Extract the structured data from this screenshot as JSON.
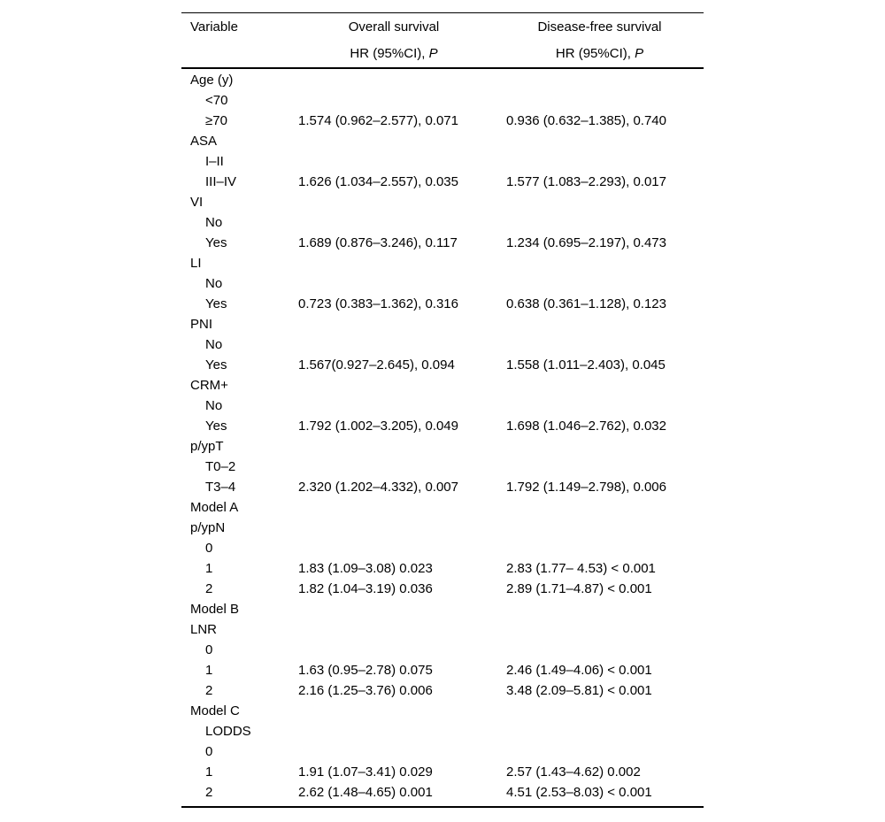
{
  "colors": {
    "background": "#ffffff",
    "text": "#000000",
    "rule": "#000000"
  },
  "table": {
    "columns": {
      "variable": "Variable",
      "os": "Overall survival",
      "dfs": "Disease-free survival",
      "subheader_hr": "HR (95%CI), ",
      "subheader_p": "P"
    },
    "rows": [
      {
        "label": "Age (y)",
        "indent": false,
        "os": "",
        "dfs": ""
      },
      {
        "label": "<70",
        "indent": true,
        "os": "",
        "dfs": ""
      },
      {
        "label": "≥70",
        "indent": true,
        "os": "1.574 (0.962–2.577), 0.071",
        "dfs": "0.936 (0.632–1.385), 0.740"
      },
      {
        "label": "ASA",
        "indent": false,
        "os": "",
        "dfs": ""
      },
      {
        "label": "I–II",
        "indent": true,
        "os": "",
        "dfs": ""
      },
      {
        "label": "III–IV",
        "indent": true,
        "os": "1.626 (1.034–2.557), 0.035",
        "dfs": "1.577 (1.083–2.293), 0.017"
      },
      {
        "label": "VI",
        "indent": false,
        "os": "",
        "dfs": ""
      },
      {
        "label": "No",
        "indent": true,
        "os": "",
        "dfs": ""
      },
      {
        "label": "Yes",
        "indent": true,
        "os": "1.689 (0.876–3.246), 0.117",
        "dfs": "1.234 (0.695–2.197), 0.473"
      },
      {
        "label": "LI",
        "indent": false,
        "os": "",
        "dfs": ""
      },
      {
        "label": "No",
        "indent": true,
        "os": "",
        "dfs": ""
      },
      {
        "label": "Yes",
        "indent": true,
        "os": "0.723 (0.383–1.362), 0.316",
        "dfs": "0.638 (0.361–1.128), 0.123"
      },
      {
        "label": "PNI",
        "indent": false,
        "os": "",
        "dfs": ""
      },
      {
        "label": "No",
        "indent": true,
        "os": "",
        "dfs": ""
      },
      {
        "label": "Yes",
        "indent": true,
        "os": "1.567(0.927–2.645), 0.094",
        "dfs": "1.558 (1.011–2.403), 0.045"
      },
      {
        "label": "CRM+",
        "indent": false,
        "os": "",
        "dfs": ""
      },
      {
        "label": "No",
        "indent": true,
        "os": "",
        "dfs": ""
      },
      {
        "label": "Yes",
        "indent": true,
        "os": "1.792 (1.002–3.205), 0.049",
        "dfs": "1.698 (1.046–2.762), 0.032"
      },
      {
        "label": "p/ypT",
        "indent": false,
        "os": "",
        "dfs": ""
      },
      {
        "label": "T0–2",
        "indent": true,
        "os": "",
        "dfs": ""
      },
      {
        "label": "T3–4",
        "indent": true,
        "os": "2.320 (1.202–4.332), 0.007",
        "dfs": "1.792 (1.149–2.798), 0.006"
      },
      {
        "label": "Model A",
        "indent": false,
        "os": "",
        "dfs": ""
      },
      {
        "label": "p/ypN",
        "indent": false,
        "os": "",
        "dfs": ""
      },
      {
        "label": "0",
        "indent": true,
        "os": "",
        "dfs": ""
      },
      {
        "label": "1",
        "indent": true,
        "os": "1.83 (1.09–3.08) 0.023",
        "dfs": "2.83 (1.77– 4.53) < 0.001"
      },
      {
        "label": "2",
        "indent": true,
        "os": "1.82 (1.04–3.19) 0.036",
        "dfs": "2.89 (1.71–4.87) < 0.001"
      },
      {
        "label": "Model B",
        "indent": false,
        "os": "",
        "dfs": ""
      },
      {
        "label": "LNR",
        "indent": false,
        "os": "",
        "dfs": ""
      },
      {
        "label": "0",
        "indent": true,
        "os": "",
        "dfs": ""
      },
      {
        "label": "1",
        "indent": true,
        "os": "1.63 (0.95–2.78) 0.075",
        "dfs": "2.46 (1.49–4.06) < 0.001"
      },
      {
        "label": "2",
        "indent": true,
        "os": "2.16 (1.25–3.76) 0.006",
        "dfs": "3.48 (2.09–5.81) < 0.001"
      },
      {
        "label": "Model C",
        "indent": false,
        "os": "",
        "dfs": ""
      },
      {
        "label": "LODDS",
        "indent": true,
        "os": "",
        "dfs": ""
      },
      {
        "label": "0",
        "indent": true,
        "os": "",
        "dfs": ""
      },
      {
        "label": "1",
        "indent": true,
        "os": "1.91 (1.07–3.41) 0.029",
        "dfs": "2.57 (1.43–4.62) 0.002"
      },
      {
        "label": "2",
        "indent": true,
        "os": "2.62 (1.48–4.65) 0.001",
        "dfs": "4.51 (2.53–8.03) < 0.001"
      }
    ]
  }
}
